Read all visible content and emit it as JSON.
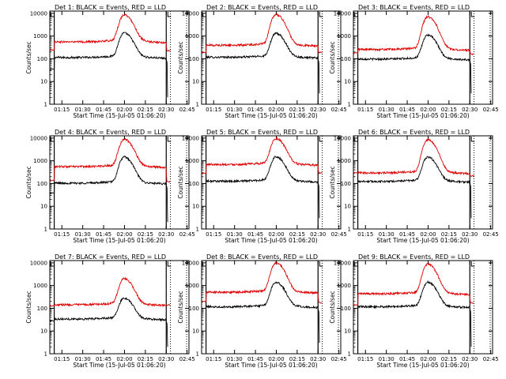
{
  "figure": {
    "xlabel": "Start Time (15-Jul-05 01:06:20)",
    "ylabel": "Counts/sec",
    "x_tick_labels": [
      "01:15",
      "01:30",
      "01:45",
      "02:00",
      "02:15",
      "02:30",
      "02:45"
    ],
    "y_tick_labels": [
      "1",
      "10",
      "100",
      "1000",
      "10000"
    ]
  },
  "chart_data": [
    {
      "type": "line",
      "title": "Det 1: BLACK = Events, RED = LLD",
      "series": [
        {
          "color": "#000000",
          "baseline": 115,
          "peak": 1350,
          "start": 35,
          "end": 2
        },
        {
          "color": "#dd0000",
          "baseline": 560,
          "peak": 8500,
          "start": 250,
          "end": 230
        }
      ]
    },
    {
      "type": "line",
      "title": "Det 2: BLACK = Events, RED = LLD",
      "series": [
        {
          "color": "#000000",
          "baseline": 118,
          "peak": 1300,
          "start": 0,
          "end": 3
        },
        {
          "color": "#dd0000",
          "baseline": 400,
          "peak": 8800,
          "start": 190,
          "end": 190
        }
      ]
    },
    {
      "type": "line",
      "title": "Det 3: BLACK = Events, RED = LLD",
      "series": [
        {
          "color": "#000000",
          "baseline": 98,
          "peak": 1100,
          "start": 0,
          "end": 3
        },
        {
          "color": "#dd0000",
          "baseline": 260,
          "peak": 7000,
          "start": 180,
          "end": 160
        }
      ]
    },
    {
      "type": "line",
      "title": "Det 4: BLACK = Events, RED = LLD",
      "series": [
        {
          "color": "#000000",
          "baseline": 105,
          "peak": 1450,
          "start": 38,
          "end": 2
        },
        {
          "color": "#dd0000",
          "baseline": 560,
          "peak": 8800,
          "start": 140,
          "end": 120
        }
      ]
    },
    {
      "type": "line",
      "title": "Det 5: BLACK = Events, RED = LLD",
      "series": [
        {
          "color": "#000000",
          "baseline": 128,
          "peak": 1500,
          "start": 0,
          "end": 3
        },
        {
          "color": "#dd0000",
          "baseline": 700,
          "peak": 9500,
          "start": 280,
          "end": 290
        }
      ]
    },
    {
      "type": "line",
      "title": "Det 6: BLACK = Events, RED = LLD",
      "series": [
        {
          "color": "#000000",
          "baseline": 125,
          "peak": 1450,
          "start": 0,
          "end": 3
        },
        {
          "color": "#dd0000",
          "baseline": 300,
          "peak": 8500,
          "start": 290,
          "end": 220
        }
      ]
    },
    {
      "type": "line",
      "title": "Det 7: BLACK = Events, RED = LLD",
      "series": [
        {
          "color": "#000000",
          "baseline": 34,
          "peak": 280,
          "start": 28,
          "end": 2
        },
        {
          "color": "#dd0000",
          "baseline": 145,
          "peak": 2000,
          "start": 130,
          "end": 140
        }
      ]
    },
    {
      "type": "line",
      "title": "Det 8: BLACK = Events, RED = LLD",
      "series": [
        {
          "color": "#000000",
          "baseline": 118,
          "peak": 1400,
          "start": 0,
          "end": 3
        },
        {
          "color": "#dd0000",
          "baseline": 520,
          "peak": 9800,
          "start": 200,
          "end": 180
        }
      ]
    },
    {
      "type": "line",
      "title": "Det 9: BLACK = Events, RED = LLD",
      "series": [
        {
          "color": "#000000",
          "baseline": 118,
          "peak": 1400,
          "start": 0,
          "end": 2
        },
        {
          "color": "#dd0000",
          "baseline": 440,
          "peak": 8700,
          "start": 140,
          "end": 170
        }
      ]
    }
  ]
}
